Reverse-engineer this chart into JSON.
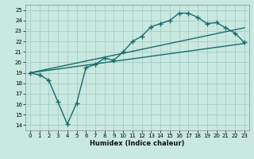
{
  "title": "",
  "xlabel": "Humidex (Indice chaleur)",
  "bg_color": "#c8e8e0",
  "line_color": "#1a6b6b",
  "grid_color": "#a0c8c0",
  "xlim": [
    -0.5,
    23.5
  ],
  "ylim": [
    13.5,
    25.5
  ],
  "xticks": [
    0,
    1,
    2,
    3,
    4,
    5,
    6,
    7,
    8,
    9,
    10,
    11,
    12,
    13,
    14,
    15,
    16,
    17,
    18,
    19,
    20,
    21,
    22,
    23
  ],
  "yticks": [
    14,
    15,
    16,
    17,
    18,
    19,
    20,
    21,
    22,
    23,
    24,
    25
  ],
  "line1_x": [
    0,
    1,
    2,
    3,
    4,
    5,
    6,
    7,
    8,
    9,
    10,
    11,
    12,
    13,
    14,
    15,
    16,
    17,
    18,
    19,
    20,
    21,
    22,
    23
  ],
  "line1_y": [
    19.0,
    18.8,
    18.3,
    16.2,
    14.1,
    16.1,
    19.5,
    19.8,
    20.4,
    20.2,
    21.0,
    22.0,
    22.5,
    23.4,
    23.7,
    24.0,
    24.7,
    24.7,
    24.3,
    23.7,
    23.8,
    23.3,
    22.8,
    21.9
  ],
  "line2_x": [
    0,
    23
  ],
  "line2_y": [
    19.0,
    21.8
  ],
  "line3_x": [
    0,
    23
  ],
  "line3_y": [
    19.0,
    23.3
  ],
  "marker_size": 4,
  "line_width": 1.0
}
